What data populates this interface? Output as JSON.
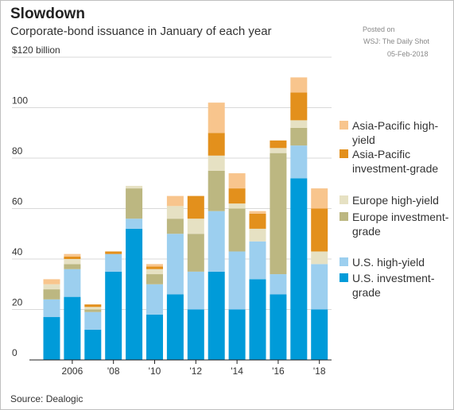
{
  "title": "Slowdown",
  "subtitle": "Corporate-bond issuance in January of each year",
  "posted": [
    "Posted on",
    "WSJ: The Daily Shot",
    "05-Feb-2018"
  ],
  "source": "Source: Dealogic",
  "chart_data": {
    "type": "bar",
    "stacked": true,
    "ylim": [
      0,
      120
    ],
    "yticks": [
      0,
      20,
      40,
      60,
      80,
      100,
      120
    ],
    "ytick_labels": [
      "0",
      "20",
      "40",
      "60",
      "80",
      "100",
      "$120 billion"
    ],
    "grid": true,
    "legend_position": "right",
    "categories": [
      "2005",
      "2006",
      "2007",
      "2008",
      "2009",
      "2010",
      "2011",
      "2012",
      "2013",
      "2014",
      "2015",
      "2016",
      "2017",
      "2018"
    ],
    "x_tick_labels": [
      "",
      "2006",
      "",
      "'08",
      "",
      "'10",
      "",
      "'12",
      "",
      "'14",
      "",
      "'16",
      "",
      "'18"
    ],
    "series": [
      {
        "name": "U.S. investment-grade",
        "color": "#009bd9",
        "values": [
          17,
          25,
          12,
          35,
          52,
          18,
          26,
          20,
          35,
          20,
          32,
          26,
          72,
          20
        ]
      },
      {
        "name": "U.S. high-yield",
        "color": "#9ccfef",
        "values": [
          7,
          11,
          7,
          7,
          4,
          12,
          24,
          15,
          24,
          23,
          15,
          8,
          13,
          18
        ]
      },
      {
        "name": "Europe investment-grade",
        "color": "#bcb781",
        "values": [
          4,
          2,
          1,
          0,
          12,
          4,
          6,
          15,
          16,
          17,
          0,
          48,
          7,
          0
        ]
      },
      {
        "name": "Europe high-yield",
        "color": "#e6e1c3",
        "values": [
          2,
          2,
          1,
          0,
          1,
          2,
          5,
          6,
          6,
          2,
          5,
          2,
          3,
          5
        ]
      },
      {
        "name": "Asia-Pacific investment-grade",
        "color": "#e3901c",
        "values": [
          0,
          1,
          1,
          1,
          0,
          1,
          0,
          9,
          9,
          6,
          6,
          3,
          11,
          17
        ]
      },
      {
        "name": "Asia-Pacific high-yield",
        "color": "#f8c58d",
        "values": [
          2,
          1,
          0,
          0,
          0,
          1,
          4,
          0,
          12,
          6,
          1,
          0,
          6,
          8
        ]
      }
    ]
  },
  "legend": [
    {
      "label": "Asia-Pacific high-yield",
      "color": "#f8c58d"
    },
    {
      "label": "Asia-Pacific investment-grade",
      "color": "#e3901c"
    },
    {
      "label": "Europe high-yield",
      "color": "#e6e1c3"
    },
    {
      "label": "Europe investment-grade",
      "color": "#bcb781"
    },
    {
      "label": "U.S. high-yield",
      "color": "#9ccfef"
    },
    {
      "label": "U.S. investment-grade",
      "color": "#009bd9"
    }
  ]
}
